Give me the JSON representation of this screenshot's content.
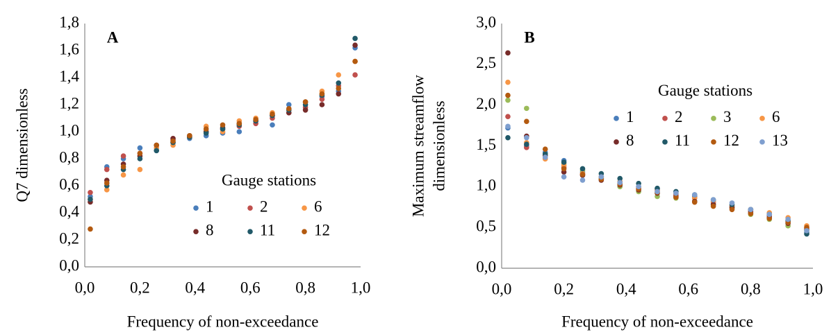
{
  "chart_data": [
    {
      "type": "scatter",
      "title": "A",
      "xlabel": "Frequency of non-exceedance",
      "ylabel": "Q7 dimensionless",
      "legend_title": "Gauge stations",
      "legend_position": "center right",
      "x": [
        0.02,
        0.08,
        0.14,
        0.2,
        0.26,
        0.32,
        0.38,
        0.44,
        0.5,
        0.56,
        0.62,
        0.68,
        0.74,
        0.8,
        0.86,
        0.92,
        0.98
      ],
      "xlim": [
        0,
        1
      ],
      "xticks": [
        {
          "value": 0,
          "label": "0,0"
        },
        {
          "value": 0.2,
          "label": "0,2"
        },
        {
          "value": 0.4,
          "label": "0,4"
        },
        {
          "value": 0.6,
          "label": "0,6"
        },
        {
          "value": 0.8,
          "label": "0,8"
        },
        {
          "value": 1,
          "label": "1,0"
        }
      ],
      "ylim": [
        0,
        1.8
      ],
      "yticks": [
        {
          "value": 0,
          "label": "0,0"
        },
        {
          "value": 0.2,
          "label": "0,2"
        },
        {
          "value": 0.4,
          "label": "0,4"
        },
        {
          "value": 0.6,
          "label": "0,6"
        },
        {
          "value": 0.8,
          "label": "0,8"
        },
        {
          "value": 1,
          "label": "1,0"
        },
        {
          "value": 1.2,
          "label": "1,2"
        },
        {
          "value": 1.4,
          "label": "1,4"
        },
        {
          "value": 1.6,
          "label": "1,6"
        },
        {
          "value": 1.8,
          "label": "1,8"
        }
      ],
      "series": [
        {
          "name": "1",
          "color": "#4a7ebb",
          "values": [
            0.52,
            0.74,
            0.8,
            0.88,
            0.86,
            0.92,
            0.95,
            0.97,
            0.99,
            1.0,
            1.08,
            1.05,
            1.2,
            1.22,
            1.26,
            1.3,
            1.62
          ]
        },
        {
          "name": "2",
          "color": "#c0504d",
          "values": [
            0.55,
            0.72,
            0.82,
            0.84,
            0.9,
            0.94,
            0.96,
            1.0,
            1.02,
            1.04,
            1.06,
            1.1,
            1.14,
            1.18,
            1.24,
            1.34,
            1.42
          ]
        },
        {
          "name": "6",
          "color": "#f79646",
          "values": [
            0.5,
            0.57,
            0.68,
            0.72,
            0.88,
            0.9,
            0.96,
            1.04,
            1.0,
            1.08,
            1.1,
            1.14,
            1.16,
            1.22,
            1.3,
            1.42,
            1.52
          ]
        },
        {
          "name": "8",
          "color": "#772c2a",
          "values": [
            0.48,
            0.64,
            0.76,
            0.82,
            0.9,
            0.95,
            0.97,
            1.0,
            1.03,
            1.06,
            1.08,
            1.12,
            1.14,
            1.16,
            1.2,
            1.28,
            1.64
          ]
        },
        {
          "name": "11",
          "color": "#215968",
          "values": [
            0.5,
            0.6,
            0.72,
            0.8,
            0.86,
            0.92,
            0.96,
            0.99,
            1.02,
            1.05,
            1.08,
            1.12,
            1.16,
            1.2,
            1.27,
            1.36,
            1.69
          ]
        },
        {
          "name": "12",
          "color": "#b35a10",
          "values": [
            0.28,
            0.62,
            0.74,
            0.84,
            0.9,
            0.93,
            0.97,
            1.02,
            1.05,
            1.06,
            1.09,
            1.13,
            1.17,
            1.22,
            1.28,
            1.32,
            1.52
          ]
        }
      ]
    },
    {
      "type": "scatter",
      "title": "B",
      "xlabel": "Frequency of non-exceedance",
      "ylabel": [
        "Maximum streamflow",
        "dimensionless"
      ],
      "legend_title": "Gauge stations",
      "legend_position": "upper right",
      "x": [
        0.02,
        0.08,
        0.14,
        0.2,
        0.26,
        0.32,
        0.38,
        0.44,
        0.5,
        0.56,
        0.62,
        0.68,
        0.74,
        0.8,
        0.86,
        0.92,
        0.98
      ],
      "xlim": [
        0,
        1
      ],
      "xticks": [
        {
          "value": 0,
          "label": "0,0"
        },
        {
          "value": 0.2,
          "label": "0,2"
        },
        {
          "value": 0.4,
          "label": "0,4"
        },
        {
          "value": 0.6,
          "label": "0,6"
        },
        {
          "value": 0.8,
          "label": "0,8"
        },
        {
          "value": 1,
          "label": "1,0"
        }
      ],
      "ylim": [
        0,
        3
      ],
      "yticks": [
        {
          "value": 0,
          "label": "0,0"
        },
        {
          "value": 0.5,
          "label": "0,5"
        },
        {
          "value": 1,
          "label": "1,0"
        },
        {
          "value": 1.5,
          "label": "1,5"
        },
        {
          "value": 2,
          "label": "2,0"
        },
        {
          "value": 2.5,
          "label": "2,5"
        },
        {
          "value": 3,
          "label": "3,0"
        }
      ],
      "series": [
        {
          "name": "1",
          "color": "#4a7ebb",
          "values": [
            1.72,
            1.5,
            1.42,
            1.32,
            1.18,
            1.12,
            1.06,
            1.0,
            0.97,
            0.92,
            0.88,
            0.82,
            0.76,
            0.7,
            0.66,
            0.56,
            0.44
          ]
        },
        {
          "name": "2",
          "color": "#c0504d",
          "values": [
            1.86,
            1.48,
            1.35,
            1.24,
            1.16,
            1.1,
            1.04,
            0.98,
            0.95,
            0.9,
            0.86,
            0.8,
            0.76,
            0.7,
            0.64,
            0.58,
            0.5
          ]
        },
        {
          "name": "3",
          "color": "#9bbb59",
          "values": [
            2.06,
            1.96,
            1.4,
            1.28,
            1.2,
            1.1,
            1.0,
            0.94,
            0.88,
            0.86,
            0.82,
            0.78,
            0.74,
            0.66,
            0.6,
            0.52,
            0.46
          ]
        },
        {
          "name": "6",
          "color": "#f79646",
          "values": [
            2.28,
            1.54,
            1.34,
            1.26,
            1.16,
            1.12,
            1.06,
            0.99,
            0.96,
            0.92,
            0.86,
            0.82,
            0.76,
            0.72,
            0.68,
            0.62,
            0.52
          ]
        },
        {
          "name": "8",
          "color": "#772c2a",
          "values": [
            2.64,
            1.62,
            1.38,
            1.18,
            1.14,
            1.08,
            1.02,
            0.96,
            0.92,
            0.88,
            0.82,
            0.78,
            0.74,
            0.68,
            0.62,
            0.55,
            0.48
          ]
        },
        {
          "name": "11",
          "color": "#215968",
          "values": [
            1.6,
            1.52,
            1.4,
            1.3,
            1.22,
            1.16,
            1.1,
            1.04,
            0.98,
            0.94,
            0.9,
            0.84,
            0.78,
            0.72,
            0.66,
            0.58,
            0.42
          ]
        },
        {
          "name": "12",
          "color": "#b35a10",
          "values": [
            2.12,
            1.8,
            1.46,
            1.22,
            1.15,
            1.09,
            1.03,
            0.97,
            0.93,
            0.87,
            0.81,
            0.76,
            0.72,
            0.67,
            0.61,
            0.56,
            0.5
          ]
        },
        {
          "name": "13",
          "color": "#7f9fcf",
          "values": [
            1.74,
            1.6,
            1.36,
            1.12,
            1.08,
            1.12,
            1.05,
            1.0,
            0.94,
            0.92,
            0.9,
            0.84,
            0.8,
            0.72,
            0.66,
            0.6,
            0.46
          ]
        }
      ]
    }
  ]
}
